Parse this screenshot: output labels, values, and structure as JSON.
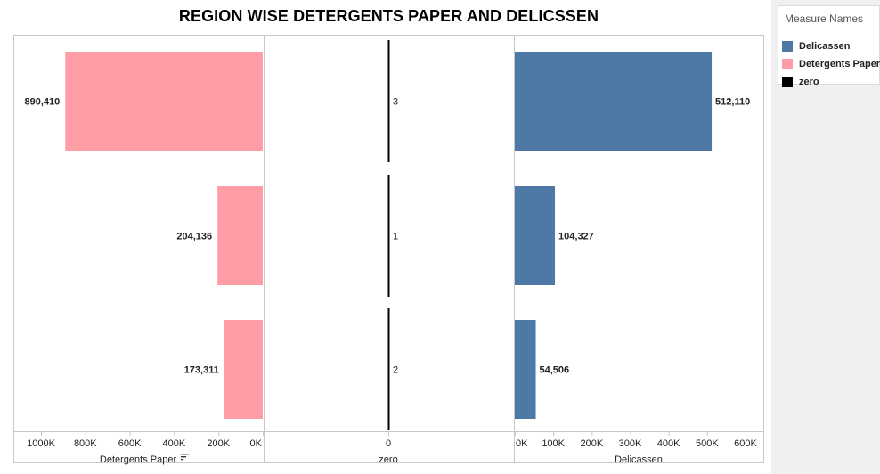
{
  "chart_data": {
    "type": "bar",
    "title": "REGION WISE DETERGENTS PAPER AND DELICSSEN",
    "categories": [
      "3",
      "1",
      "2"
    ],
    "series": [
      {
        "name": "Detergents Paper",
        "values": [
          890410,
          204136,
          173311
        ],
        "labels": [
          "890,410",
          "204,136",
          "173,311"
        ],
        "color": "#ff9da7"
      },
      {
        "name": "zero",
        "values": [
          0,
          0,
          0
        ],
        "color": "#000000"
      },
      {
        "name": "Delicassen",
        "values": [
          512110,
          104327,
          54506
        ],
        "labels": [
          "512,110",
          "104,327",
          "54,506"
        ],
        "color": "#4e79a7"
      }
    ],
    "panes": [
      {
        "title": "Detergents Paper",
        "ticks": [
          "1000K",
          "800K",
          "600K",
          "400K",
          "200K",
          "0K"
        ],
        "range": [
          0,
          1000000
        ],
        "reversed": true,
        "sorted": true
      },
      {
        "title": "zero",
        "ticks": [
          "0"
        ]
      },
      {
        "title": "Delicassen",
        "ticks": [
          "0K",
          "100K",
          "200K",
          "300K",
          "400K",
          "500K",
          "600K"
        ],
        "range": [
          0,
          600000
        ],
        "reversed": false
      }
    ],
    "grid": false
  },
  "legend": {
    "title": "Measure Names",
    "items": [
      {
        "label": "Delicassen",
        "color": "#4e79a7"
      },
      {
        "label": "Detergents Paper",
        "color": "#ff9da7"
      },
      {
        "label": "zero",
        "color": "#000000"
      }
    ]
  }
}
